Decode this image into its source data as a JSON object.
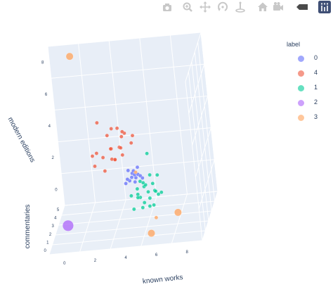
{
  "modebar": {
    "buttons": [
      {
        "name": "camera-icon",
        "color": "#c8c8c8"
      },
      {
        "name": "zoom-icon",
        "color": "#c8c8c8"
      },
      {
        "name": "pan-icon",
        "color": "#c8c8c8"
      },
      {
        "name": "orbit-rotation-icon",
        "color": "#c8c8c8"
      },
      {
        "name": "turntable-rotation-icon",
        "color": "#c8c8c8"
      },
      {
        "name": "home-icon",
        "color": "#c8c8c8"
      },
      {
        "name": "camera-view-icon",
        "color": "#c8c8c8"
      },
      {
        "name": "hover-label-icon",
        "color": "#4a4a4a"
      },
      {
        "name": "plotly-logo-icon",
        "color": "#3f4f75"
      }
    ]
  },
  "chart_data": {
    "type": "scatter",
    "scene": "3d",
    "axes": {
      "x": {
        "title": "known works",
        "ticks": [
          "0",
          "2",
          "4",
          "6",
          "8"
        ],
        "range": [
          -1,
          9
        ]
      },
      "y": {
        "title": "commentaries",
        "ticks": [
          "0",
          "1",
          "2",
          "3",
          "4",
          "5"
        ],
        "range": [
          -0.5,
          5.5
        ]
      },
      "z": {
        "title": "modern editions",
        "ticks": [
          "0",
          "2",
          "4",
          "6",
          "8"
        ],
        "range": [
          -1,
          9
        ]
      }
    },
    "grid": true,
    "background_color": "#e5ecf6",
    "legend": {
      "title": "label",
      "placement": "right",
      "entries": [
        {
          "name": "0",
          "color": "#636efa"
        },
        {
          "name": "4",
          "color": "#ef553b"
        },
        {
          "name": "1",
          "color": "#00cc96"
        },
        {
          "name": "2",
          "color": "#ab63fa"
        },
        {
          "name": "3",
          "color": "#ffa15a"
        }
      ]
    },
    "series": [
      {
        "name": "0",
        "color": "#636efa",
        "points": [
          [
            4.2,
            1.8,
            2.0,
            1
          ],
          [
            4.4,
            1.6,
            2.3,
            1
          ],
          [
            4.6,
            1.9,
            2.1,
            1
          ],
          [
            4.1,
            2.1,
            2.5,
            1
          ],
          [
            4.8,
            1.7,
            2.4,
            1
          ],
          [
            4.3,
            2.3,
            2.2,
            1
          ],
          [
            4.5,
            2.0,
            1.8,
            1
          ],
          [
            4.0,
            1.5,
            2.0,
            1
          ],
          [
            4.7,
            2.2,
            2.6,
            1
          ],
          [
            4.9,
            1.9,
            2.2,
            1
          ],
          [
            4.2,
            1.2,
            2.4,
            1
          ],
          [
            4.6,
            1.4,
            2.8,
            1
          ],
          [
            4.4,
            2.5,
            2.0,
            1
          ],
          [
            5.0,
            2.0,
            2.0,
            1
          ]
        ]
      },
      {
        "name": "4",
        "color": "#ef553b",
        "points": [
          [
            2.0,
            2.0,
            3.0,
            1
          ],
          [
            2.5,
            2.4,
            3.3,
            1
          ],
          [
            3.0,
            2.8,
            3.6,
            1
          ],
          [
            3.3,
            2.2,
            3.2,
            1
          ],
          [
            3.6,
            2.5,
            3.8,
            1
          ],
          [
            2.8,
            2.9,
            4.4,
            1
          ],
          [
            3.8,
            2.0,
            4.0,
            1
          ],
          [
            4.0,
            2.6,
            4.6,
            1
          ],
          [
            3.5,
            2.9,
            4.8,
            1
          ],
          [
            3.2,
            2.5,
            5.0,
            1
          ],
          [
            4.0,
            2.0,
            5.0,
            1
          ],
          [
            2.3,
            2.6,
            5.4,
            1
          ],
          [
            3.8,
            2.3,
            3.4,
            1
          ],
          [
            4.4,
            2.5,
            4.0,
            1
          ],
          [
            2.6,
            2.1,
            2.6,
            1
          ],
          [
            3.0,
            2.7,
            3.0,
            1
          ],
          [
            1.8,
            2.5,
            3.4,
            1
          ],
          [
            3.4,
            1.8,
            3.4,
            1
          ],
          [
            4.6,
            2.2,
            4.6,
            1
          ],
          [
            3.1,
            2.2,
            3.9,
            1
          ],
          [
            2.2,
            2.0,
            3.8,
            1
          ],
          [
            3.7,
            3.0,
            4.2,
            1
          ]
        ]
      },
      {
        "name": "1",
        "color": "#00cc96",
        "points": [
          [
            5.2,
            1.3,
            1.8,
            1
          ],
          [
            5.5,
            1.0,
            1.6,
            1
          ],
          [
            5.0,
            0.8,
            1.4,
            1
          ],
          [
            5.8,
            1.2,
            2.0,
            1
          ],
          [
            5.3,
            0.5,
            1.2,
            1
          ],
          [
            6.0,
            0.7,
            1.8,
            1
          ],
          [
            5.6,
            1.5,
            2.4,
            1
          ],
          [
            4.8,
            1.0,
            1.3,
            1
          ],
          [
            5.4,
            0.9,
            2.1,
            1
          ],
          [
            6.2,
            1.0,
            2.6,
            1
          ],
          [
            5.1,
            1.6,
            1.9,
            1
          ],
          [
            5.7,
            0.4,
            1.5,
            1
          ],
          [
            5.9,
            1.4,
            1.4,
            1
          ],
          [
            4.9,
            0.6,
            1.7,
            1
          ],
          [
            6.4,
            0.8,
            1.6,
            1
          ],
          [
            5.2,
            0.3,
            1.0,
            1
          ],
          [
            5.5,
            1.8,
            3.6,
            1
          ],
          [
            6.1,
            1.2,
            1.3,
            1
          ],
          [
            5.0,
            1.2,
            2.2,
            1
          ],
          [
            4.4,
            0.9,
            1.5,
            1
          ],
          [
            4.6,
            0.4,
            0.9,
            1
          ],
          [
            5.6,
            0.6,
            0.9,
            1
          ],
          [
            4.7,
            1.5,
            1.6,
            1
          ],
          [
            5.8,
            0.9,
            0.8,
            1
          ]
        ]
      },
      {
        "name": "2",
        "color": "#ab63fa",
        "points": [
          [
            0.2,
            0.5,
            0.2,
            3
          ]
        ]
      },
      {
        "name": "3",
        "color": "#ffa15a",
        "points": [
          [
            0.5,
            4.8,
            8.6,
            2
          ],
          [
            6.0,
            0.3,
            0.3,
            1
          ],
          [
            7.4,
            0.5,
            0.4,
            2
          ],
          [
            5.6,
            0.2,
            -0.6,
            2
          ],
          [
            4.6,
            2.0,
            2.4,
            1
          ]
        ]
      }
    ]
  }
}
